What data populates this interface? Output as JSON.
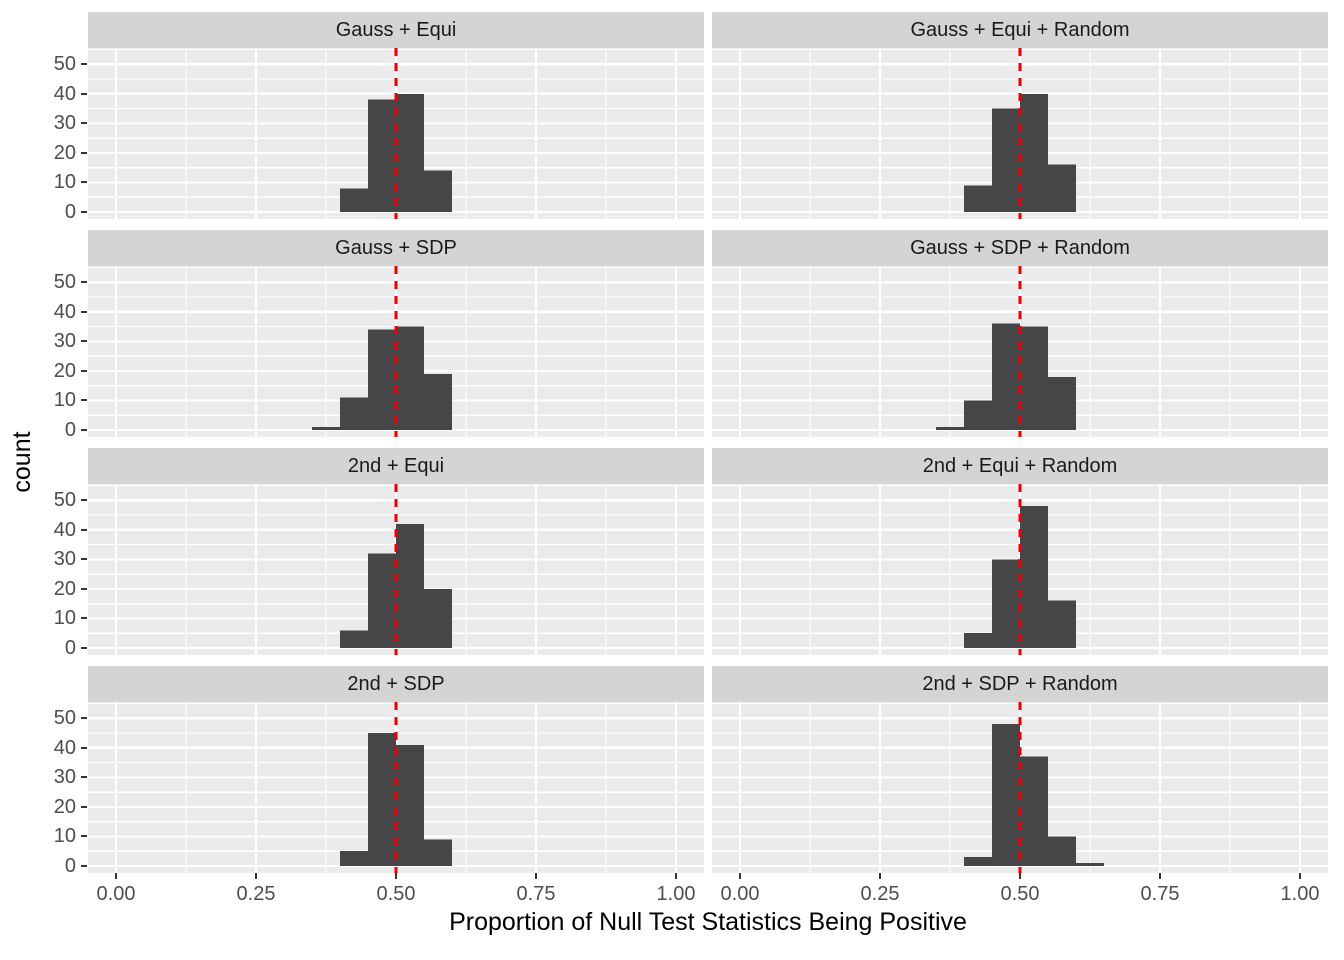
{
  "figure": {
    "background": "#FFFFFF"
  },
  "chart_data": {
    "type": "bar",
    "subtype": "faceted-histogram",
    "title": "",
    "xlabel": "Proportion of Null Test Statistics Being Positive",
    "ylabel": "count",
    "x_tick_labels": [
      "0.00",
      "0.25",
      "0.50",
      "0.75",
      "1.00"
    ],
    "x_tick_values": [
      0,
      0.25,
      0.5,
      0.75,
      1.0
    ],
    "y_tick_labels": [
      "0",
      "10",
      "20",
      "30",
      "40",
      "50"
    ],
    "y_tick_values": [
      0,
      10,
      20,
      30,
      40,
      50
    ],
    "x_range": [
      -0.05,
      1.05
    ],
    "y_range": [
      -2.4,
      55.5
    ],
    "x_minor_ticks": [
      0.125,
      0.375,
      0.625,
      0.875
    ],
    "y_minor_ticks": [
      5,
      15,
      25,
      35,
      45,
      55
    ],
    "grid": "major-and-minor-white-on-grey",
    "legend_position": "none",
    "bin_width": 0.05,
    "reference_line": {
      "x": 0.5,
      "color": "#EE0000",
      "linetype": "dashed",
      "orientation": "vertical"
    },
    "facet_layout": {
      "rows": 4,
      "cols": 2
    },
    "facets": [
      {
        "title": "Gauss + Equi",
        "bin_start": 0.4,
        "counts": [
          8,
          38,
          40,
          14
        ]
      },
      {
        "title": "Gauss + Equi + Random",
        "bin_start": 0.4,
        "counts": [
          9,
          35,
          40,
          16
        ]
      },
      {
        "title": "Gauss + SDP",
        "bin_start": 0.35,
        "counts": [
          1,
          11,
          34,
          35,
          19
        ]
      },
      {
        "title": "Gauss + SDP + Random",
        "bin_start": 0.35,
        "counts": [
          1,
          10,
          36,
          35,
          18
        ]
      },
      {
        "title": "2nd + Equi",
        "bin_start": 0.4,
        "counts": [
          6,
          32,
          42,
          20
        ]
      },
      {
        "title": "2nd + Equi + Random",
        "bin_start": 0.4,
        "counts": [
          5,
          30,
          48,
          16
        ]
      },
      {
        "title": "2nd + SDP",
        "bin_start": 0.4,
        "counts": [
          5,
          45,
          41,
          9
        ]
      },
      {
        "title": "2nd + SDP + Random",
        "bin_start": 0.4,
        "counts": [
          3,
          48,
          37,
          10,
          1
        ]
      }
    ],
    "colors": {
      "bar": "#464646",
      "panel_background": "#EBEBEB",
      "gridline": "#FFFFFF",
      "strip_background": "#D4D4D4",
      "strip_text": "#1A1A1A",
      "tick_text": "#4D4D4D",
      "axis_title_text": "#000000",
      "reference_line": "#EE0000"
    }
  }
}
